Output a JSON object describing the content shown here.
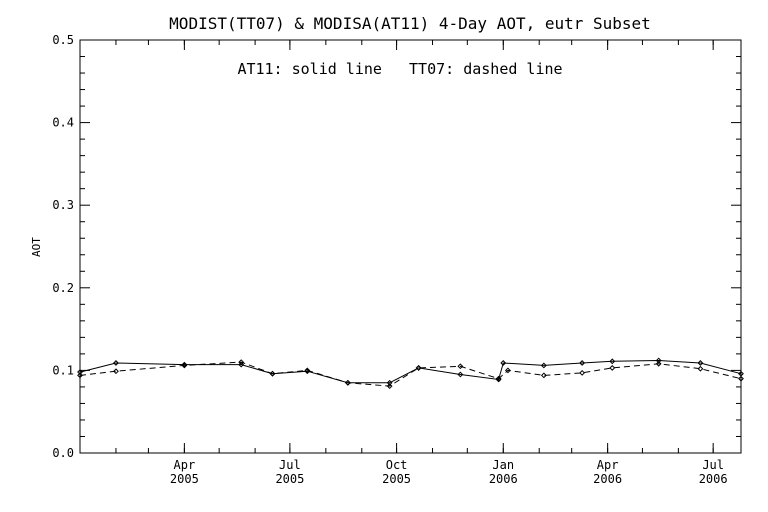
{
  "chart_data": {
    "type": "line",
    "title": "MODIST(TT07) & MODISA(AT11) 4-Day AOT, eutr Subset",
    "annotation": "AT11: solid line   TT07: dashed line",
    "xlabel": "",
    "ylabel": "AOT",
    "ylim": [
      0.0,
      0.5
    ],
    "xlim": [
      "2005-01-01",
      "2006-07-25"
    ],
    "y_ticks": [
      "0.0",
      "0.1",
      "0.2",
      "0.3",
      "0.4",
      "0.5"
    ],
    "x_ticks": [
      {
        "month": "Apr",
        "year": "2005",
        "date": "2005-04-01"
      },
      {
        "month": "Jul",
        "year": "2005",
        "date": "2005-07-01"
      },
      {
        "month": "Oct",
        "year": "2005",
        "date": "2005-10-01"
      },
      {
        "month": "Jan",
        "year": "2006",
        "date": "2006-01-01"
      },
      {
        "month": "Apr",
        "year": "2006",
        "date": "2006-04-01"
      },
      {
        "month": "Jul",
        "year": "2006",
        "date": "2006-07-01"
      }
    ],
    "grid": false,
    "series": [
      {
        "name": "AT11",
        "style": "solid",
        "points": [
          {
            "x": "2005-01-01",
            "y": 0.098
          },
          {
            "x": "2005-02-01",
            "y": 0.109
          },
          {
            "x": "2005-04-01",
            "y": 0.107
          },
          {
            "x": "2005-05-20",
            "y": 0.107
          },
          {
            "x": "2005-06-16",
            "y": 0.096
          },
          {
            "x": "2005-07-16",
            "y": 0.099
          },
          {
            "x": "2005-08-20",
            "y": 0.085
          },
          {
            "x": "2005-09-25",
            "y": 0.085
          },
          {
            "x": "2005-10-20",
            "y": 0.103
          },
          {
            "x": "2005-11-25",
            "y": 0.095
          },
          {
            "x": "2005-12-28",
            "y": 0.089
          },
          {
            "x": "2006-01-01",
            "y": 0.109
          },
          {
            "x": "2006-02-05",
            "y": 0.106
          },
          {
            "x": "2006-03-10",
            "y": 0.109
          },
          {
            "x": "2006-04-05",
            "y": 0.111
          },
          {
            "x": "2006-05-15",
            "y": 0.112
          },
          {
            "x": "2006-06-20",
            "y": 0.109
          },
          {
            "x": "2006-07-25",
            "y": 0.096
          }
        ]
      },
      {
        "name": "TT07",
        "style": "dashed",
        "points": [
          {
            "x": "2005-01-01",
            "y": 0.094
          },
          {
            "x": "2005-02-01",
            "y": 0.099
          },
          {
            "x": "2005-04-01",
            "y": 0.106
          },
          {
            "x": "2005-05-20",
            "y": 0.11
          },
          {
            "x": "2005-06-16",
            "y": 0.096
          },
          {
            "x": "2005-07-16",
            "y": 0.1
          },
          {
            "x": "2005-08-20",
            "y": 0.085
          },
          {
            "x": "2005-09-25",
            "y": 0.081
          },
          {
            "x": "2005-10-20",
            "y": 0.103
          },
          {
            "x": "2005-11-25",
            "y": 0.105
          },
          {
            "x": "2005-12-28",
            "y": 0.09
          },
          {
            "x": "2006-01-05",
            "y": 0.1
          },
          {
            "x": "2006-02-05",
            "y": 0.094
          },
          {
            "x": "2006-03-10",
            "y": 0.097
          },
          {
            "x": "2006-04-05",
            "y": 0.103
          },
          {
            "x": "2006-05-15",
            "y": 0.108
          },
          {
            "x": "2006-06-20",
            "y": 0.102
          },
          {
            "x": "2006-07-25",
            "y": 0.09
          }
        ]
      }
    ]
  }
}
